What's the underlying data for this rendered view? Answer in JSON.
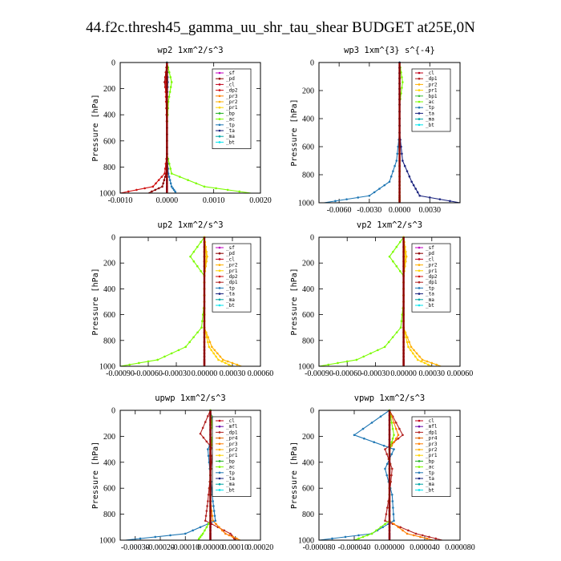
{
  "suptitle": "44.f2c.thresh45_gamma_uu_shr_tau_shear  BUDGET at25E,0N",
  "colors": {
    "sf": "#c000c0",
    "pd": "#8b0000",
    "cl": "#c0001a",
    "dp2": "#d01010",
    "pr3": "#ff7f00",
    "pr2": "#ffb000",
    "pr1": "#ffd400",
    "bp": "#20b020",
    "bp1": "#40c040",
    "ac": "#7cfc00",
    "tp": "#1f77b4",
    "ta": "#1a237e",
    "ma": "#00a6a6",
    "bt": "#00e5ee",
    "dp1": "#b22222",
    "pr4": "#e06000",
    "mfl": "#6a0dad",
    "ma2": "#20a0a0"
  },
  "chart_data": [
    {
      "type": "line",
      "title": "wp2  1xm^2/s^3",
      "xlim": [
        -0.001,
        0.002
      ],
      "ylim": [
        1000,
        0
      ],
      "xticks": [
        "-0.0010",
        "0.0000",
        "0.0010",
        "0.0020"
      ],
      "yticks": [
        "0",
        "200",
        "400",
        "600",
        "800",
        "1000"
      ],
      "ylabel": "Pressure [hPa]",
      "legend_loc": "top-right",
      "legend": [
        "_sf",
        "_pd",
        "_cl",
        "_dp2",
        "_pr3",
        "_pr2",
        "_pr1",
        "_bp",
        "_ac",
        "_tp",
        "_ta",
        "_ma",
        "_bt"
      ],
      "series": [
        {
          "name": "_sf",
          "color": "sf",
          "x": [
            0,
            0,
            0,
            0,
            0,
            0,
            0,
            0
          ],
          "y": [
            0,
            150,
            300,
            500,
            700,
            850,
            950,
            1000
          ]
        },
        {
          "name": "_pd",
          "color": "pd",
          "x": [
            0,
            -5e-05,
            0,
            0,
            0,
            -2e-05,
            -0.0001,
            -0.0004
          ],
          "y": [
            0,
            150,
            300,
            500,
            700,
            850,
            950,
            1000
          ]
        },
        {
          "name": "_dp2",
          "color": "dp2",
          "x": [
            0,
            -3e-05,
            -2e-05,
            0,
            0,
            -5e-05,
            -0.0003,
            -0.001
          ],
          "y": [
            0,
            150,
            300,
            500,
            700,
            850,
            950,
            1000
          ]
        },
        {
          "name": "_ac",
          "color": "ac",
          "x": [
            0,
            0.0001,
            3e-05,
            0,
            0,
            0.0001,
            0.0008,
            0.0018
          ],
          "y": [
            0,
            150,
            300,
            500,
            700,
            850,
            950,
            1000
          ]
        },
        {
          "name": "_tp",
          "color": "tp",
          "x": [
            0,
            2e-05,
            0,
            0,
            0,
            3e-05,
            0.0001,
            0.0002
          ],
          "y": [
            0,
            150,
            300,
            500,
            700,
            850,
            950,
            1000
          ]
        }
      ]
    },
    {
      "type": "line",
      "title": "wp3  1xm^{3} s^{-4}",
      "xlim": [
        -0.008,
        0.006
      ],
      "ylim": [
        1000,
        0
      ],
      "xticks": [
        "-0.0060",
        "-0.0030",
        "0.0000",
        "0.0030"
      ],
      "yticks": [
        "0",
        "200",
        "400",
        "600",
        "800",
        "1000"
      ],
      "ylabel": "Pressure [hPa]",
      "legend_loc": "top-right",
      "legend": [
        "_cl",
        "_dp1",
        "_pr2",
        "_pr1",
        "_bp1",
        "_ac",
        "_tp",
        "_ta",
        "_ma",
        "_bt"
      ],
      "series": [
        {
          "name": "_dp1",
          "color": "dp1",
          "x": [
            0,
            0,
            0,
            0,
            0,
            0,
            0,
            0
          ],
          "y": [
            0,
            150,
            300,
            500,
            700,
            850,
            950,
            1000
          ]
        },
        {
          "name": "_ac",
          "color": "ac",
          "x": [
            0,
            0.0003,
            0,
            0,
            0,
            0,
            0,
            0
          ],
          "y": [
            0,
            140,
            300,
            500,
            700,
            850,
            950,
            1000
          ]
        },
        {
          "name": "_tp",
          "color": "tp",
          "x": [
            0,
            0,
            0,
            0,
            -0.0003,
            -0.001,
            -0.003,
            -0.0075
          ],
          "y": [
            0,
            150,
            300,
            500,
            700,
            850,
            950,
            1000
          ]
        },
        {
          "name": "_ta",
          "color": "ta",
          "x": [
            0,
            0,
            0,
            0,
            0.0003,
            0.0012,
            0.002,
            0.006
          ],
          "y": [
            0,
            150,
            300,
            500,
            700,
            850,
            950,
            1000
          ]
        }
      ]
    },
    {
      "type": "line",
      "title": "up2  1xm^2/s^3",
      "xlim": [
        -0.0009,
        0.0006
      ],
      "ylim": [
        1000,
        0
      ],
      "xticks": [
        "-0.00090",
        "-0.00060",
        "-0.00030",
        "0.00000",
        "0.00030",
        "0.00060"
      ],
      "yticks": [
        "0",
        "200",
        "400",
        "600",
        "800",
        "1000"
      ],
      "ylabel": "Pressure [hPa]",
      "legend_loc": "top-right",
      "legend": [
        "_sf",
        "_pd",
        "_cl",
        "_pr2",
        "_pr1",
        "_dp2",
        "_dp1",
        "_tp",
        "_ta",
        "_ma",
        "_bt"
      ],
      "series": [
        {
          "name": "_cl",
          "color": "cl",
          "x": [
            0,
            0,
            0,
            0,
            0,
            0,
            0,
            0
          ],
          "y": [
            0,
            150,
            300,
            500,
            700,
            850,
            950,
            1000
          ]
        },
        {
          "name": "_dp2",
          "color": "ac",
          "x": [
            0,
            -0.00015,
            0,
            0,
            -3e-05,
            -0.0002,
            -0.0005,
            -0.0009
          ],
          "y": [
            0,
            150,
            300,
            500,
            700,
            850,
            950,
            1000
          ]
        },
        {
          "name": "_pr2",
          "color": "pr2",
          "x": [
            0,
            3e-05,
            0,
            0,
            0,
            8e-05,
            0.0002,
            0.0004
          ],
          "y": [
            0,
            150,
            300,
            500,
            700,
            850,
            950,
            1000
          ]
        },
        {
          "name": "_pr1",
          "color": "pr1",
          "x": [
            0,
            2e-05,
            0,
            0,
            0,
            5e-05,
            0.00015,
            0.0003
          ],
          "y": [
            0,
            150,
            300,
            500,
            700,
            850,
            950,
            1000
          ]
        }
      ]
    },
    {
      "type": "line",
      "title": "vp2  1xm^2/s^3",
      "xlim": [
        -0.0009,
        0.0006
      ],
      "ylim": [
        1000,
        0
      ],
      "xticks": [
        "-0.00090",
        "-0.00060",
        "-0.00030",
        "0.00000",
        "0.00030",
        "0.00060"
      ],
      "yticks": [
        "0",
        "200",
        "400",
        "600",
        "800",
        "1000"
      ],
      "ylabel": "Pressure [hPa]",
      "legend_loc": "top-right",
      "legend": [
        "_sf",
        "_pd",
        "_cl",
        "_pr2",
        "_pr1",
        "_dp2",
        "_dp1",
        "_tp",
        "_ta",
        "_ma",
        "_bt"
      ],
      "series": [
        {
          "name": "_cl",
          "color": "cl",
          "x": [
            0,
            0,
            0,
            0,
            0,
            0,
            0,
            0
          ],
          "y": [
            0,
            150,
            300,
            500,
            700,
            850,
            950,
            1000
          ]
        },
        {
          "name": "_dp2",
          "color": "ac",
          "x": [
            0,
            -0.00015,
            0,
            0,
            -3e-05,
            -0.0002,
            -0.0005,
            -0.0009
          ],
          "y": [
            0,
            150,
            300,
            500,
            700,
            850,
            950,
            1000
          ]
        },
        {
          "name": "_pr2",
          "color": "pr2",
          "x": [
            0,
            3e-05,
            0,
            0,
            0,
            8e-05,
            0.0002,
            0.0004
          ],
          "y": [
            0,
            150,
            300,
            500,
            700,
            850,
            950,
            1000
          ]
        },
        {
          "name": "_pr1",
          "color": "pr1",
          "x": [
            0,
            2e-05,
            0,
            0,
            0,
            5e-05,
            0.00015,
            0.0003
          ],
          "y": [
            0,
            150,
            300,
            500,
            700,
            850,
            950,
            1000
          ]
        }
      ]
    },
    {
      "type": "line",
      "title": "upwp  1xm^2/s^3",
      "xlim": [
        -0.00036,
        0.0002
      ],
      "ylim": [
        1000,
        0
      ],
      "xticks": [
        "-0.00030",
        "-0.00020",
        "-0.00010",
        "0.00000",
        "0.00010",
        "0.00020"
      ],
      "yticks": [
        "0",
        "200",
        "400",
        "600",
        "800",
        "1000"
      ],
      "ylabel": "Pressure [hPa]",
      "legend_loc": "top-right",
      "legend": [
        "_cl",
        "_mfl",
        "_dp1",
        "_pr4",
        "_pr3",
        "_pr2",
        "_pr1",
        "_bp",
        "_ac",
        "_tp",
        "_ta",
        "_ma",
        "_bt"
      ],
      "series": [
        {
          "name": "_mfl",
          "color": "mfl",
          "x": [
            0,
            0,
            0,
            0,
            0,
            0,
            0,
            0
          ],
          "y": [
            0,
            150,
            300,
            500,
            700,
            850,
            950,
            1000
          ]
        },
        {
          "name": "_dp1",
          "color": "dp1",
          "x": [
            0,
            -4e-05,
            1e-05,
            0,
            -1e-05,
            -2e-05,
            8e-05,
            0.0001
          ],
          "y": [
            0,
            180,
            300,
            500,
            700,
            850,
            950,
            1000
          ]
        },
        {
          "name": "_pr3",
          "color": "pr3",
          "x": [
            0,
            2e-05,
            0,
            0,
            0,
            1e-05,
            6e-05,
            0.00012
          ],
          "y": [
            0,
            180,
            300,
            500,
            700,
            850,
            950,
            1000
          ]
        },
        {
          "name": "_tp",
          "color": "tp",
          "x": [
            0,
            2e-05,
            -1e-05,
            0,
            1e-05,
            2e-05,
            -0.0001,
            -0.00034
          ],
          "y": [
            0,
            180,
            300,
            500,
            700,
            850,
            950,
            1000
          ]
        },
        {
          "name": "_ac",
          "color": "ac",
          "x": [
            0,
            1e-05,
            0,
            0,
            0,
            0,
            -3e-05,
            -5e-05
          ],
          "y": [
            0,
            180,
            300,
            500,
            700,
            850,
            950,
            1000
          ]
        }
      ]
    },
    {
      "type": "line",
      "title": "vpwp  1xm^2/s^3",
      "xlim": [
        -8e-05,
        8e-05
      ],
      "ylim": [
        1000,
        0
      ],
      "xticks": [
        "-0.000080",
        "-0.000040",
        "0.000000",
        "0.000040",
        "0.000080"
      ],
      "yticks": [
        "0",
        "200",
        "400",
        "600",
        "800",
        "1000"
      ],
      "ylabel": "Pressure [hPa]",
      "legend_loc": "top-right",
      "legend": [
        "_cl",
        "_mfl",
        "_dp1",
        "_pr4",
        "_pr3",
        "_pr2",
        "_pr1",
        "_bp",
        "_ac",
        "_tp",
        "_ta",
        "_ma",
        "_bt"
      ],
      "series": [
        {
          "name": "_mfl",
          "color": "mfl",
          "x": [
            0,
            0,
            0,
            0,
            0,
            0,
            0,
            0
          ],
          "y": [
            0,
            150,
            300,
            500,
            700,
            850,
            950,
            1000
          ]
        },
        {
          "name": "_dp1",
          "color": "dp1",
          "x": [
            0,
            1.5e-05,
            -5e-06,
            3e-06,
            0,
            -5e-06,
            3e-05,
            6e-05
          ],
          "y": [
            0,
            190,
            300,
            450,
            650,
            850,
            950,
            1000
          ]
        },
        {
          "name": "_pr3",
          "color": "pr3",
          "x": [
            0,
            1e-05,
            0,
            0,
            0,
            0,
            2e-05,
            5e-05
          ],
          "y": [
            0,
            190,
            300,
            450,
            650,
            850,
            950,
            1000
          ]
        },
        {
          "name": "_tp",
          "color": "tp",
          "x": [
            0,
            -4e-05,
            5e-06,
            -5e-06,
            3e-06,
            5e-06,
            -2e-05,
            -8e-05
          ],
          "y": [
            0,
            190,
            300,
            450,
            650,
            850,
            950,
            1000
          ]
        },
        {
          "name": "_ac",
          "color": "ac",
          "x": [
            0,
            5e-06,
            0,
            0,
            0,
            0,
            -2e-05,
            -4e-05
          ],
          "y": [
            0,
            190,
            300,
            450,
            650,
            850,
            950,
            1000
          ]
        }
      ]
    }
  ]
}
